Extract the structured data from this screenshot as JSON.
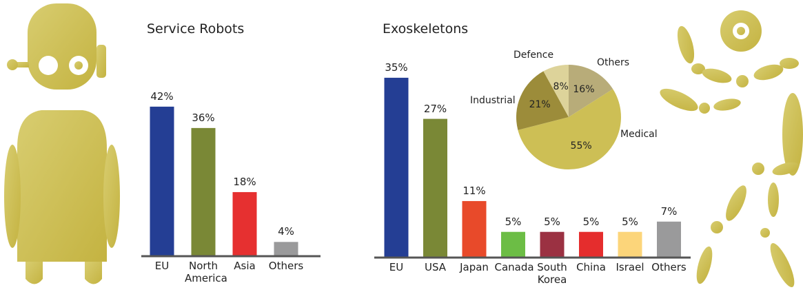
{
  "chart_data": [
    {
      "type": "bar",
      "title": "Service Robots",
      "categories": [
        "EU",
        "North America",
        "Asia",
        "Others"
      ],
      "values": [
        42,
        36,
        18,
        4
      ],
      "value_labels": [
        "42%",
        "36%",
        "18%",
        "4%"
      ],
      "colors": [
        "#243e94",
        "#7a8836",
        "#e63030",
        "#9a9a9b"
      ]
    },
    {
      "type": "bar",
      "title": "Exoskeletons",
      "categories": [
        "EU",
        "USA",
        "Japan",
        "Canada",
        "South Korea",
        "China",
        "Israel",
        "Others"
      ],
      "values": [
        35,
        27,
        11,
        5,
        5,
        5,
        5,
        7
      ],
      "value_labels": [
        "35%",
        "27%",
        "11%",
        "5%",
        "5%",
        "5%",
        "5%",
        "7%"
      ],
      "colors": [
        "#243e94",
        "#7a8836",
        "#e84a2a",
        "#6cbd45",
        "#9b3142",
        "#e52d2d",
        "#fcd57a",
        "#9a9a9b"
      ]
    },
    {
      "type": "pie",
      "labels": [
        "Others",
        "Medical",
        "Industrial",
        "Defence"
      ],
      "values": [
        16,
        55,
        21,
        8
      ],
      "value_labels": [
        "16%",
        "55%",
        "21%",
        "8%"
      ],
      "colors": [
        "#b8ac79",
        "#cdbf55",
        "#9c8c3a",
        "#ddd39a"
      ]
    }
  ]
}
